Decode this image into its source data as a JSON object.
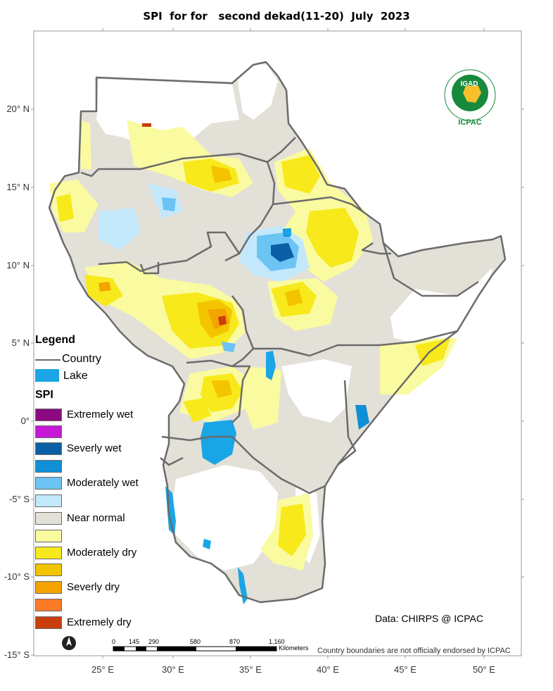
{
  "title": "SPI  for for   second dekad(11-20)  July  2023",
  "lat_labels": [
    "20° N",
    "15° N",
    "10° N",
    "5° N",
    "0°",
    "-5° S",
    "-10° S",
    "-15° S"
  ],
  "lon_labels": [
    "25° E",
    "30° E",
    "35° E",
    "40° E",
    "45° E",
    "50° E"
  ],
  "legend": {
    "title": "Legend",
    "country_label": "Country",
    "lake_label": "Lake",
    "spi_title": "SPI",
    "spi_classes": [
      {
        "label": "Extremely wet",
        "color": "#8b0a82"
      },
      {
        "label": "",
        "color": "#c718d6"
      },
      {
        "label": "Severly wet",
        "color": "#0b5fa5"
      },
      {
        "label": "",
        "color": "#0f8fd6"
      },
      {
        "label": "Moderately wet",
        "color": "#6cc4f5"
      },
      {
        "label": "",
        "color": "#c4e8fb"
      },
      {
        "label": "Near normal",
        "color": "#e3e0d8"
      },
      {
        "label": "",
        "color": "#fafaa0"
      },
      {
        "label": "Moderately dry",
        "color": "#f7e91b"
      },
      {
        "label": "",
        "color": "#f4c400"
      },
      {
        "label": "Severly dry",
        "color": "#f4a300"
      },
      {
        "label": "",
        "color": "#fb7a26"
      },
      {
        "label": "Extremely dry",
        "color": "#c83e0c"
      }
    ]
  },
  "colors": {
    "lake": "#1aa6e6",
    "country_line": "#6b6b6b",
    "near_normal": "#e3e0d8",
    "logo_green": "#178a3c"
  },
  "credit": "Data: CHIRPS @ ICPAC",
  "disclaimer": "Country boundaries are not officially endorsed by ICPAC",
  "scalebar": {
    "ticks": [
      "0",
      "145",
      "290",
      "580",
      "870",
      "1,160"
    ],
    "unit": "Kilometers"
  },
  "logo": {
    "name": "IGAD",
    "sub": "ICPAC"
  },
  "north_arrow_icon": "north-arrow-icon"
}
